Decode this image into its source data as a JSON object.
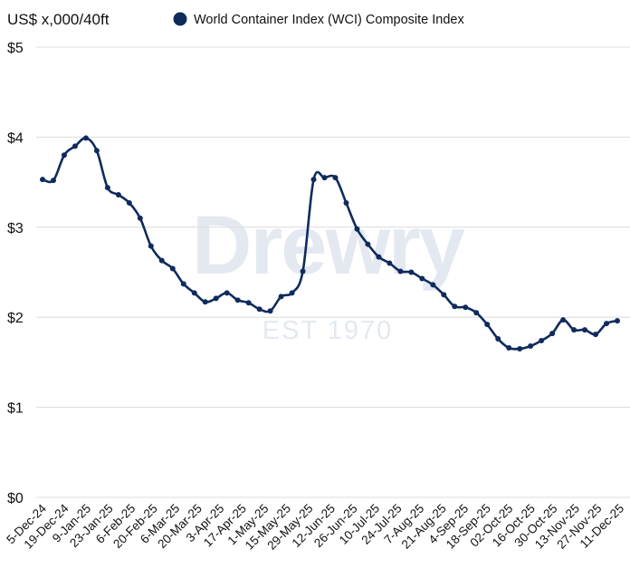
{
  "watermark": {
    "brand": "Drewry",
    "tagline": "EST 1970"
  },
  "chart_data": {
    "type": "line",
    "ylabel": "US$ x,000/40ft",
    "legend_position": "top",
    "grid": "horizontal",
    "ylim": [
      0,
      5
    ],
    "yticks": [
      {
        "value": 0,
        "label": "$0"
      },
      {
        "value": 1,
        "label": "$1"
      },
      {
        "value": 2,
        "label": "$2"
      },
      {
        "value": 3,
        "label": "$3"
      },
      {
        "value": 4,
        "label": "$4"
      },
      {
        "value": 5,
        "label": "$5"
      }
    ],
    "x_tick_labels": [
      "5-Dec-24",
      "19-Dec-24",
      "9-Jan-25",
      "23-Jan-25",
      "6-Feb-25",
      "20-Feb-25",
      "6-Mar-25",
      "20-Mar-25",
      "3-Apr-25",
      "17-Apr-25",
      "1-May-25",
      "15-May-25",
      "29-May-25",
      "12-Jun-25",
      "26-Jun-25",
      "10-Jul-25",
      "24-Jul-25",
      "7-Aug-25",
      "21-Aug-25",
      "4-Sep-25",
      "18-Sep-25",
      "02-Oct-25",
      "16-Oct-25",
      "30-Oct-25",
      "13-Nov-25",
      "27-Nov-25",
      "11-Dec-25"
    ],
    "series": [
      {
        "name": "World Container Index (WCI) Composite Index",
        "color": "#0f2b5c",
        "values": [
          3.53,
          3.52,
          3.8,
          3.9,
          3.99,
          3.85,
          3.44,
          3.36,
          3.27,
          3.1,
          2.79,
          2.63,
          2.54,
          2.37,
          2.27,
          2.17,
          2.21,
          2.27,
          2.19,
          2.16,
          2.09,
          2.07,
          2.23,
          2.27,
          2.51,
          3.53,
          3.55,
          3.55,
          3.27,
          2.98,
          2.81,
          2.67,
          2.6,
          2.51,
          2.5,
          2.43,
          2.36,
          2.25,
          2.12,
          2.11,
          2.05,
          1.92,
          1.76,
          1.66,
          1.65,
          1.68,
          1.74,
          1.82,
          1.97,
          1.86,
          1.86,
          1.81,
          1.93,
          1.96
        ]
      }
    ]
  }
}
